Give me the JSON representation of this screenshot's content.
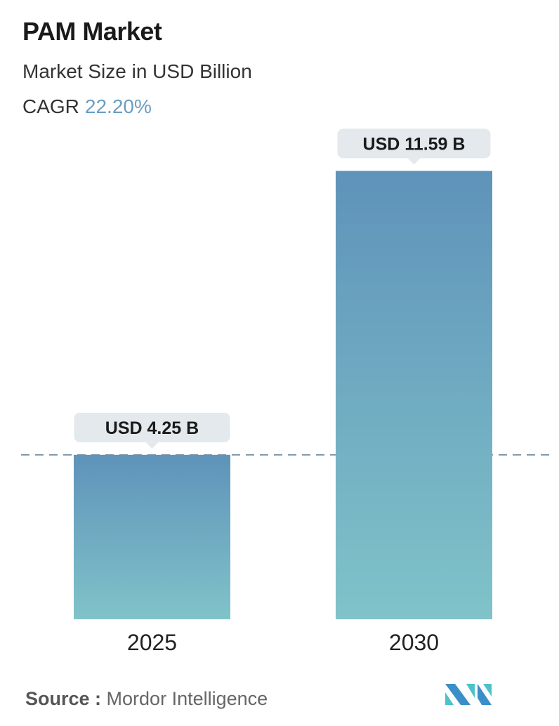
{
  "header": {
    "title": "PAM Market",
    "subtitle": "Market Size in USD Billion",
    "cagr_label": "CAGR",
    "cagr_value": "22.20%"
  },
  "chart_data": {
    "type": "bar",
    "categories": [
      "2025",
      "2030"
    ],
    "values": [
      4.25,
      11.59
    ],
    "data_labels": [
      "USD 4.25 B",
      "USD 11.59 B"
    ],
    "reference_line": {
      "value": 4.25,
      "style": "dashed"
    },
    "grid": false,
    "colors": {
      "bar_top": "#5f93ba",
      "bar_bottom": "#80c3c9",
      "label_bg": "#e3e9ec",
      "ref_line": "#5e7f96"
    }
  },
  "footer": {
    "source_label": "Source :",
    "source_value": "Mordor Intelligence",
    "logo": "mordor-intelligence-logo"
  }
}
